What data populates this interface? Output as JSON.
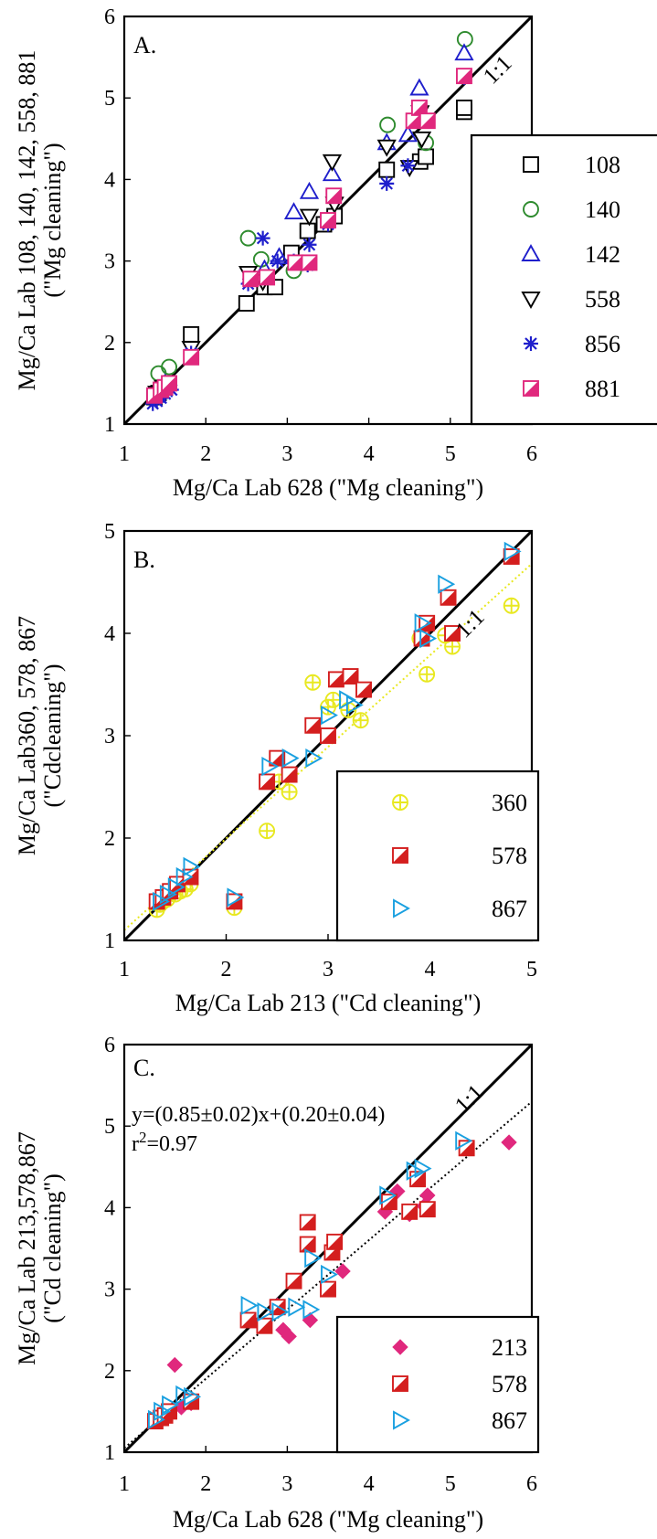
{
  "colors": {
    "108": "#000000",
    "140": "#2e8b2e",
    "142": "#1f1fcc",
    "558": "#000000",
    "856": "#1f1fcc",
    "881": "#e0287d",
    "360": "#e8e820",
    "578": "#d41e1e",
    "867": "#1aa0e0",
    "213": "#e0287d"
  },
  "chart_data": [
    {
      "type": "scatter",
      "panel_label": "A.",
      "xlabel": "Mg/Ca Lab 628 (\"Mg cleaning\")",
      "ylabel": "Mg/Ca Lab 108, 140, 142, 558, 881",
      "ylabel2": "(\"Mg cleaning\")",
      "xlim": [
        1,
        6
      ],
      "ylim": [
        1,
        6
      ],
      "xticks": [
        "1",
        "2",
        "3",
        "4",
        "5",
        "6"
      ],
      "yticks": [
        "1",
        "2",
        "3",
        "4",
        "5",
        "6"
      ],
      "line_label": "1:1",
      "lines": [
        {
          "style": "solid",
          "color": "#000000",
          "x": [
            1,
            6
          ],
          "y": [
            1,
            6
          ]
        }
      ],
      "legend": [
        {
          "label": "108",
          "marker": "square",
          "color": "#000000"
        },
        {
          "label": "140",
          "marker": "circle",
          "color": "#2e8b2e"
        },
        {
          "label": "142",
          "marker": "triangle-up",
          "color": "#1f1fcc"
        },
        {
          "label": "558",
          "marker": "triangle-down",
          "color": "#000000"
        },
        {
          "label": "856",
          "marker": "star",
          "color": "#1f1fcc"
        },
        {
          "label": "881",
          "marker": "halfsquare",
          "color": "#e0287d"
        }
      ],
      "series": [
        {
          "name": "108",
          "marker": "square",
          "color": "#000000",
          "x": [
            1.37,
            1.42,
            1.45,
            1.5,
            1.82,
            2.5,
            2.72,
            2.85,
            3.05,
            3.25,
            3.45,
            3.58,
            4.22,
            4.63,
            4.7,
            5.17,
            5.17
          ],
          "y": [
            1.33,
            1.38,
            1.42,
            1.45,
            2.1,
            2.48,
            2.68,
            2.68,
            3.1,
            3.37,
            3.45,
            3.55,
            4.12,
            4.22,
            4.28,
            4.83,
            4.88
          ]
        },
        {
          "name": "140",
          "marker": "circle",
          "color": "#2e8b2e",
          "x": [
            1.42,
            1.55,
            2.52,
            2.68,
            3.08,
            4.23,
            4.7,
            5.18
          ],
          "y": [
            1.62,
            1.7,
            3.28,
            3.02,
            2.88,
            4.67,
            4.45,
            5.72
          ]
        },
        {
          "name": "142",
          "marker": "triangle-up",
          "color": "#1f1fcc",
          "x": [
            1.4,
            1.5,
            2.55,
            2.72,
            2.9,
            3.08,
            3.27,
            3.55,
            4.22,
            4.48,
            4.62,
            5.17
          ],
          "y": [
            1.35,
            1.5,
            2.8,
            2.9,
            3.05,
            3.6,
            3.85,
            4.07,
            4.45,
            4.55,
            5.12,
            5.55
          ]
        },
        {
          "name": "558",
          "marker": "triangle-down",
          "color": "#000000",
          "x": [
            1.4,
            1.48,
            1.82,
            2.52,
            2.7,
            3.27,
            3.55,
            3.58,
            4.22,
            4.5,
            4.63,
            4.65
          ],
          "y": [
            1.38,
            1.45,
            1.93,
            2.85,
            2.75,
            3.55,
            4.22,
            3.7,
            4.4,
            4.15,
            4.82,
            4.5
          ]
        },
        {
          "name": "856",
          "marker": "star",
          "color": "#1f1fcc",
          "x": [
            1.35,
            1.4,
            1.45,
            1.5,
            1.58,
            1.82,
            2.52,
            2.7,
            2.88,
            3.08,
            3.25,
            3.27,
            3.5,
            4.22,
            4.48,
            5.17
          ],
          "y": [
            1.25,
            1.28,
            1.32,
            1.37,
            1.42,
            1.87,
            2.72,
            3.28,
            3.0,
            3.0,
            2.95,
            3.2,
            3.45,
            3.95,
            4.17,
            5.25
          ]
        },
        {
          "name": "881",
          "marker": "halfsquare",
          "color": "#e0287d",
          "x": [
            1.37,
            1.45,
            1.5,
            1.55,
            1.82,
            2.55,
            2.75,
            3.1,
            3.27,
            3.5,
            3.57,
            4.55,
            4.62,
            4.72,
            5.17
          ],
          "y": [
            1.35,
            1.42,
            1.45,
            1.5,
            1.82,
            2.78,
            2.8,
            2.98,
            2.98,
            3.5,
            3.8,
            4.72,
            4.88,
            4.72,
            5.27
          ]
        }
      ]
    },
    {
      "type": "scatter",
      "panel_label": "B.",
      "xlabel": "Mg/Ca Lab 213 (\"Cd cleaning\")",
      "ylabel": "Mg/Ca Lab360, 578, 867",
      "ylabel2": "(\"Cdcleaning\")",
      "xlim": [
        1,
        5
      ],
      "ylim": [
        1,
        5
      ],
      "xticks": [
        "1",
        "2",
        "3",
        "4",
        "5"
      ],
      "yticks": [
        "1",
        "2",
        "3",
        "4",
        "5"
      ],
      "line_label": "1:1",
      "lines": [
        {
          "style": "solid",
          "color": "#000000",
          "x": [
            1,
            5
          ],
          "y": [
            1,
            5
          ]
        },
        {
          "style": "dotted",
          "color": "#e8e820",
          "x": [
            1,
            5
          ],
          "y": [
            1.1,
            4.68
          ]
        }
      ],
      "legend": [
        {
          "label": "360",
          "marker": "circleplus",
          "color": "#e8e820"
        },
        {
          "label": "578",
          "marker": "halfsquare",
          "color": "#d41e1e"
        },
        {
          "label": "867",
          "marker": "triangle-right",
          "color": "#1aa0e0"
        }
      ],
      "series": [
        {
          "name": "360",
          "marker": "circleplus",
          "color": "#e8e820",
          "x": [
            1.32,
            1.35,
            1.38,
            1.42,
            1.5,
            1.55,
            1.6,
            1.65,
            2.08,
            2.4,
            2.52,
            2.62,
            2.85,
            3.0,
            3.05,
            3.2,
            3.32,
            3.9,
            3.97,
            4.15,
            4.22,
            4.8
          ],
          "y": [
            1.3,
            1.35,
            1.38,
            1.4,
            1.45,
            1.48,
            1.5,
            1.55,
            1.32,
            2.07,
            2.55,
            2.45,
            3.52,
            3.28,
            3.35,
            3.25,
            3.15,
            3.95,
            3.6,
            3.98,
            3.87,
            4.27
          ]
        },
        {
          "name": "578",
          "marker": "halfsquare",
          "color": "#d41e1e",
          "x": [
            1.32,
            1.38,
            1.45,
            1.52,
            1.65,
            2.08,
            2.4,
            2.5,
            2.62,
            2.85,
            3.0,
            3.08,
            3.22,
            3.35,
            3.92,
            3.97,
            4.18,
            4.22,
            4.8
          ],
          "y": [
            1.38,
            1.42,
            1.48,
            1.55,
            1.62,
            1.38,
            2.55,
            2.78,
            2.62,
            3.1,
            3.0,
            3.55,
            3.58,
            3.45,
            3.95,
            4.1,
            4.35,
            4.0,
            4.75
          ]
        },
        {
          "name": "867",
          "marker": "triangle-right",
          "color": "#1aa0e0",
          "x": [
            1.35,
            1.42,
            1.5,
            1.58,
            1.65,
            2.08,
            2.42,
            2.62,
            2.85,
            3.0,
            3.18,
            3.25,
            3.92,
            3.97,
            4.15,
            4.8
          ],
          "y": [
            1.38,
            1.45,
            1.52,
            1.62,
            1.72,
            1.42,
            2.7,
            2.78,
            2.78,
            3.2,
            3.35,
            3.3,
            4.1,
            3.95,
            4.48,
            4.8
          ]
        }
      ]
    },
    {
      "type": "scatter",
      "panel_label": "C.",
      "xlabel": "Mg/Ca Lab 628 (\"Mg cleaning\")",
      "ylabel": "Mg/Ca Lab 213,578,867",
      "ylabel2": "(\"Cd cleaning\")",
      "xlim": [
        1,
        6
      ],
      "ylim": [
        1,
        6
      ],
      "xticks": [
        "1",
        "2",
        "3",
        "4",
        "5",
        "6"
      ],
      "yticks": [
        "1",
        "2",
        "3",
        "4",
        "5",
        "6"
      ],
      "line_label": "1:1",
      "annotation_eq": "y=(0.85±0.02)x+(0.20±0.04)",
      "annotation_r2_base": "r",
      "annotation_r2_sup": "2",
      "annotation_r2_rest": "=0.97",
      "lines": [
        {
          "style": "solid",
          "color": "#000000",
          "x": [
            1,
            6
          ],
          "y": [
            1,
            6
          ]
        },
        {
          "style": "dotted",
          "color": "#000000",
          "x": [
            1,
            6
          ],
          "y": [
            1.05,
            5.3
          ]
        }
      ],
      "legend": [
        {
          "label": "213",
          "marker": "diamond",
          "color": "#e0287d"
        },
        {
          "label": "578",
          "marker": "halfsquare",
          "color": "#d41e1e"
        },
        {
          "label": "867",
          "marker": "triangle-right",
          "color": "#1aa0e0"
        }
      ],
      "series": [
        {
          "name": "213",
          "marker": "diamond",
          "color": "#e0287d",
          "x": [
            1.38,
            1.45,
            1.5,
            1.55,
            1.62,
            1.7,
            1.82,
            2.88,
            2.95,
            3.02,
            3.28,
            3.5,
            3.68,
            4.2,
            4.35,
            4.5,
            4.68,
            4.72,
            5.72
          ],
          "y": [
            1.38,
            1.42,
            1.45,
            1.5,
            2.07,
            1.55,
            1.6,
            2.8,
            2.5,
            2.42,
            2.62,
            3.0,
            3.22,
            3.95,
            4.2,
            3.92,
            4.02,
            4.15,
            4.8
          ]
        },
        {
          "name": "578",
          "marker": "halfsquare",
          "color": "#d41e1e",
          "x": [
            1.38,
            1.45,
            1.5,
            1.55,
            1.82,
            2.52,
            2.72,
            2.88,
            3.08,
            3.25,
            3.25,
            3.5,
            3.55,
            3.58,
            4.25,
            4.5,
            4.6,
            4.72,
            5.2
          ],
          "y": [
            1.38,
            1.42,
            1.45,
            1.5,
            1.62,
            2.62,
            2.55,
            2.78,
            3.1,
            3.82,
            3.55,
            3.0,
            3.45,
            3.58,
            4.07,
            3.95,
            4.35,
            3.98,
            4.73
          ]
        },
        {
          "name": "867",
          "marker": "triangle-right",
          "color": "#1aa0e0",
          "x": [
            1.38,
            1.45,
            1.55,
            1.72,
            1.82,
            2.52,
            2.72,
            2.9,
            3.1,
            3.28,
            3.3,
            3.5,
            4.22,
            4.55,
            4.65,
            5.15
          ],
          "y": [
            1.4,
            1.5,
            1.58,
            1.7,
            1.68,
            2.8,
            2.72,
            2.72,
            2.78,
            2.75,
            3.38,
            3.18,
            4.15,
            4.45,
            4.48,
            4.82
          ]
        }
      ]
    }
  ]
}
